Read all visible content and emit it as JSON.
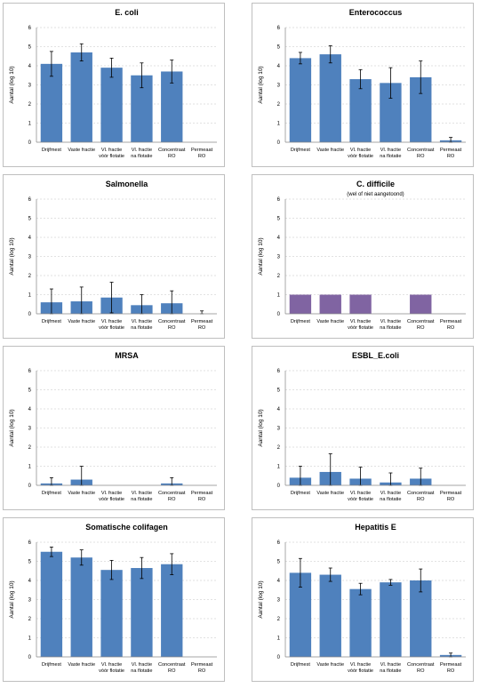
{
  "chart_data": [
    {
      "type": "bar",
      "title": "E. coli",
      "ylabel": "Aantal (log 10)",
      "color": "#4f81bd",
      "ylim": [
        0,
        6
      ],
      "yticks": [
        0,
        1,
        2,
        3,
        4,
        5,
        6
      ],
      "grid": true,
      "categories": [
        [
          "Drijfmest"
        ],
        [
          "Vaste fractie"
        ],
        [
          "Vl. fractie",
          "vóór flotatie"
        ],
        [
          "Vl. fractie",
          "na flotatie"
        ],
        [
          "Concentraat",
          "RO"
        ],
        [
          "Permeaat",
          "RO"
        ]
      ],
      "values": [
        4.1,
        4.7,
        3.9,
        3.5,
        3.7,
        null
      ],
      "errors": [
        0.65,
        0.45,
        0.5,
        0.65,
        0.6,
        null
      ]
    },
    {
      "type": "bar",
      "title": "Enterococcus",
      "ylabel": "Aantal (log 10)",
      "color": "#4f81bd",
      "ylim": [
        0,
        6
      ],
      "yticks": [
        0,
        1,
        2,
        3,
        4,
        5,
        6
      ],
      "grid": true,
      "categories": [
        [
          "Drijfmest"
        ],
        [
          "Vaste fractie"
        ],
        [
          "Vl. fractie",
          "vóór flotatie"
        ],
        [
          "Vl. fractie",
          "na flotatie"
        ],
        [
          "Concentraat",
          "RO"
        ],
        [
          "Permeaat",
          "RO"
        ]
      ],
      "values": [
        4.4,
        4.6,
        3.3,
        3.1,
        3.4,
        0.1
      ],
      "errors": [
        0.3,
        0.45,
        0.5,
        0.8,
        0.85,
        0.15
      ]
    },
    {
      "type": "bar",
      "title": "Salmonella",
      "ylabel": "Aantal (log 10)",
      "color": "#4f81bd",
      "ylim": [
        0,
        6
      ],
      "yticks": [
        0,
        1,
        2,
        3,
        4,
        5,
        6
      ],
      "grid": true,
      "categories": [
        [
          "Drijfmest"
        ],
        [
          "Vaste fractie"
        ],
        [
          "Vl. fractie",
          "vóór flotatie"
        ],
        [
          "Vl. fractie",
          "na flotatie"
        ],
        [
          "Concentraat",
          "RO"
        ],
        [
          "Permeaat",
          "RO"
        ]
      ],
      "values": [
        0.6,
        0.65,
        0.85,
        0.45,
        0.55,
        0
      ],
      "errors": [
        0.7,
        0.75,
        0.8,
        0.55,
        0.65,
        0.15
      ]
    },
    {
      "type": "bar",
      "title": "C. difficile",
      "subtitle": "(wel of niet aangetoond)",
      "ylabel": "Aantal (log 10)",
      "color": "#8064a2",
      "ylim": [
        0,
        6
      ],
      "yticks": [
        0,
        1,
        2,
        3,
        4,
        5,
        6
      ],
      "grid": true,
      "categories": [
        [
          "Drijfmest"
        ],
        [
          "Vaste fractie"
        ],
        [
          "Vl. fractie",
          "vóór flotatie"
        ],
        [
          "Vl. fractie",
          "na flotatie"
        ],
        [
          "Concentraat",
          "RO"
        ],
        [
          "Permeaat",
          "RO"
        ]
      ],
      "values": [
        1,
        1,
        1,
        0,
        1,
        0
      ],
      "errors": [
        null,
        null,
        null,
        null,
        null,
        null
      ]
    },
    {
      "type": "bar",
      "title": "MRSA",
      "ylabel": "Aantal (log 10)",
      "color": "#4f81bd",
      "ylim": [
        0,
        6
      ],
      "yticks": [
        0,
        1,
        2,
        3,
        4,
        5,
        6
      ],
      "grid": true,
      "categories": [
        [
          "Drijfmest"
        ],
        [
          "Vaste fractie"
        ],
        [
          "Vl. fractie",
          "vóór flotatie"
        ],
        [
          "Vl. fractie",
          "na flotatie"
        ],
        [
          "Concentraat",
          "RO"
        ],
        [
          "Permeaat",
          "RO"
        ]
      ],
      "values": [
        0.1,
        0.3,
        0,
        0,
        0.1,
        0
      ],
      "errors": [
        0.3,
        0.7,
        null,
        null,
        0.3,
        null
      ]
    },
    {
      "type": "bar",
      "title": "ESBL_E.coli",
      "ylabel": "Aantal (log 10)",
      "color": "#4f81bd",
      "ylim": [
        0,
        6
      ],
      "yticks": [
        0,
        1,
        2,
        3,
        4,
        5,
        6
      ],
      "grid": true,
      "categories": [
        [
          "Drijfmest"
        ],
        [
          "Vaste fractie"
        ],
        [
          "Vl. fractie",
          "vóór flotatie"
        ],
        [
          "Vl. fractie",
          "na flotatie"
        ],
        [
          "Concentraat",
          "RO"
        ],
        [
          "Permeaat",
          "RO"
        ]
      ],
      "values": [
        0.4,
        0.7,
        0.35,
        0.15,
        0.35,
        0
      ],
      "errors": [
        0.6,
        0.95,
        0.6,
        0.5,
        0.55,
        null
      ]
    },
    {
      "type": "bar",
      "title": "Somatische colifagen",
      "ylabel": "Aantal (log 10)",
      "color": "#4f81bd",
      "ylim": [
        0,
        6
      ],
      "yticks": [
        0,
        1,
        2,
        3,
        4,
        5,
        6
      ],
      "grid": true,
      "categories": [
        [
          "Drijfmest"
        ],
        [
          "Vaste fractie"
        ],
        [
          "Vl. fractie",
          "vóór flotatie"
        ],
        [
          "Vl. fractie",
          "na flotatie"
        ],
        [
          "Concentraat",
          "RO"
        ],
        [
          "Permeaat",
          "RO"
        ]
      ],
      "values": [
        5.5,
        5.2,
        4.55,
        4.65,
        4.85,
        null
      ],
      "errors": [
        0.25,
        0.4,
        0.5,
        0.55,
        0.55,
        null
      ]
    },
    {
      "type": "bar",
      "title": "Hepatitis E",
      "ylabel": "Aantal (log 10)",
      "color": "#4f81bd",
      "ylim": [
        0,
        6
      ],
      "yticks": [
        0,
        1,
        2,
        3,
        4,
        5,
        6
      ],
      "grid": true,
      "categories": [
        [
          "Drijfmest"
        ],
        [
          "Vaste fractie"
        ],
        [
          "Vl. fractie",
          "vóór flotatie"
        ],
        [
          "Vl. fractie",
          "na flotatie"
        ],
        [
          "Concentraat",
          "RO"
        ],
        [
          "Permeaat",
          "RO"
        ]
      ],
      "values": [
        4.4,
        4.3,
        3.55,
        3.9,
        4.0,
        0.1
      ],
      "errors": [
        0.75,
        0.35,
        0.3,
        0.15,
        0.6,
        0.1
      ]
    }
  ]
}
